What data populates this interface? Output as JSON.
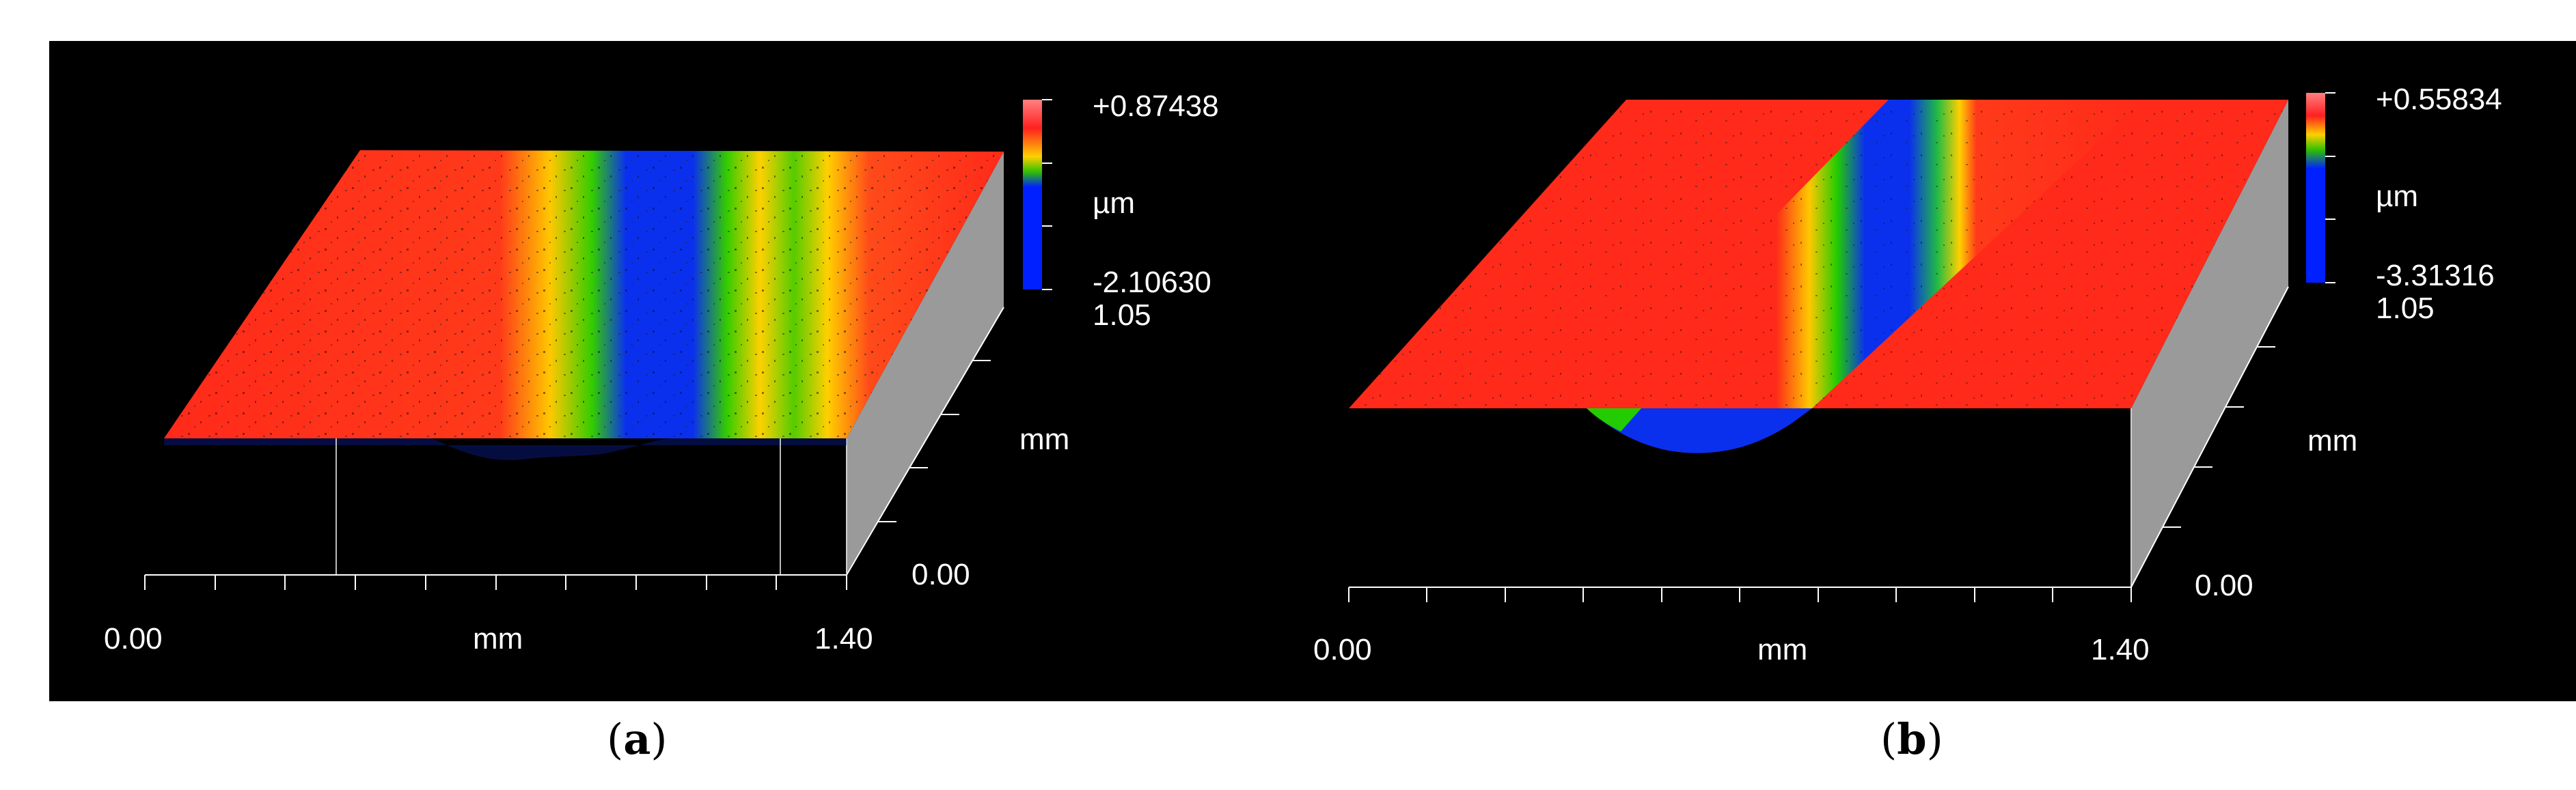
{
  "panels": [
    {
      "id": "a",
      "caption_letter": "a",
      "scale_max": "+0.87438",
      "scale_unit": "µm",
      "scale_min": "-2.10630",
      "y_extent": "1.05",
      "y_unit": "mm",
      "y_origin": "0.00",
      "x_start": "0.00",
      "x_unit": "mm",
      "x_end": "1.40"
    },
    {
      "id": "b",
      "caption_letter": "b",
      "scale_max": "+0.55834",
      "scale_unit": "µm",
      "scale_min": "-3.31316",
      "y_extent": "1.05",
      "y_unit": "mm",
      "y_origin": "0.00",
      "x_start": "0.00",
      "x_unit": "mm",
      "x_end": "1.40"
    }
  ],
  "colors": {
    "background": "#000000",
    "high": "#ff2a1a",
    "mid_high": "#ffd000",
    "mid": "#33cc00",
    "low": "#0022ee",
    "side_wall": "#9a9a9a"
  }
}
